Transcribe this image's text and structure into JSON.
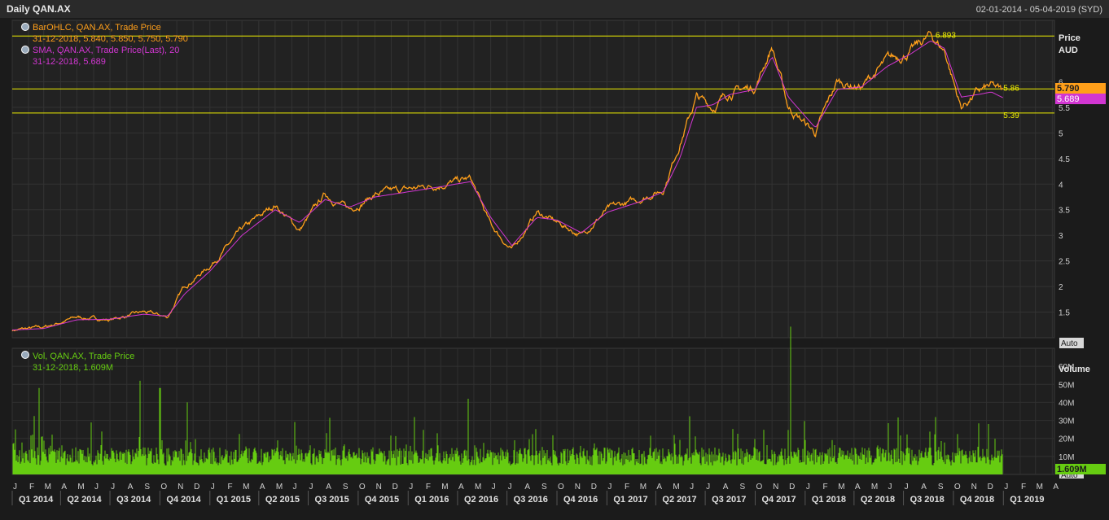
{
  "header": {
    "title": "Daily QAN.AX",
    "date_range": "02-01-2014 - 05-04-2019 (SYD)"
  },
  "colors": {
    "price": "#ff9f1a",
    "sma": "#d236d2",
    "volume": "#66cc11",
    "hline": "#f0f000"
  },
  "legend": {
    "ohlc_line1": "BarOHLC, QAN.AX, Trade Price",
    "ohlc_line2": "31-12-2018, 5.840, 5.850, 5.750, 5.790",
    "sma_line1": "SMA, QAN.AX, Trade Price(Last),  20",
    "sma_line2": "31-12-2018, 5.689",
    "vol_line1": "Vol, QAN.AX, Trade Price",
    "vol_line2": "31-12-2018, 1.609M"
  },
  "price_axis": {
    "title": "Price",
    "unit": "AUD",
    "ticks": [
      "1.5",
      "2",
      "2.5",
      "3",
      "3.5",
      "4",
      "4.5",
      "5",
      "5.5",
      "6"
    ],
    "last_price_badge": "5.790",
    "sma_badge": "5.689",
    "auto_label": "Auto"
  },
  "volume_axis": {
    "title": "Volume",
    "ticks": [
      "10M",
      "20M",
      "30M",
      "40M",
      "50M",
      "60M"
    ],
    "last_volume_badge": "1.609M",
    "auto_label": "Auto"
  },
  "hlines": [
    {
      "value": 6.893,
      "label": "6.893"
    },
    {
      "value": 5.86,
      "label": "5.86"
    },
    {
      "value": 5.39,
      "label": "5.39"
    }
  ],
  "x_axis": {
    "months": [
      "J",
      "F",
      "M",
      "A",
      "M",
      "J",
      "J",
      "A",
      "S",
      "O",
      "N",
      "D",
      "J",
      "F",
      "M",
      "A",
      "M",
      "J",
      "J",
      "A",
      "S",
      "O",
      "N",
      "D",
      "J",
      "F",
      "M",
      "A",
      "M",
      "J",
      "J",
      "A",
      "S",
      "O",
      "N",
      "D",
      "J",
      "F",
      "M",
      "A",
      "M",
      "J",
      "J",
      "A",
      "S",
      "O",
      "N",
      "D",
      "J",
      "F",
      "M",
      "A",
      "M",
      "J",
      "J",
      "A",
      "S",
      "O",
      "N",
      "D",
      "J",
      "F",
      "M",
      "A"
    ],
    "quarters": [
      "Q1 2014",
      "Q2 2014",
      "Q3 2014",
      "Q4 2014",
      "Q1 2015",
      "Q2 2015",
      "Q3 2015",
      "Q4 2015",
      "Q1 2016",
      "Q2 2016",
      "Q3 2016",
      "Q4 2016",
      "Q1 2017",
      "Q2 2017",
      "Q3 2017",
      "Q4 2017",
      "Q1 2018",
      "Q2 2018",
      "Q3 2018",
      "Q4 2018",
      "Q1 2019"
    ]
  },
  "chart_data": {
    "type": "line",
    "x_range": [
      "2014-01-02",
      "2019-04-05"
    ],
    "price_ylim": [
      1.0,
      7.2
    ],
    "volume_ylim": [
      0,
      70
    ],
    "price_grid": true,
    "legend_placement": "top-left",
    "price_series": {
      "name": "BarOHLC, QAN.AX, Trade Price",
      "x": [
        "2014-01-02",
        "2014-03-01",
        "2014-05-01",
        "2014-07-01",
        "2014-09-01",
        "2014-10-15",
        "2014-11-15",
        "2015-01-01",
        "2015-03-01",
        "2015-05-01",
        "2015-06-15",
        "2015-08-01",
        "2015-09-15",
        "2015-11-01",
        "2016-01-01",
        "2016-03-01",
        "2016-04-25",
        "2016-06-01",
        "2016-07-10",
        "2016-08-25",
        "2016-10-01",
        "2016-11-15",
        "2017-01-01",
        "2017-03-01",
        "2017-04-15",
        "2017-05-15",
        "2017-06-15",
        "2017-07-15",
        "2017-08-15",
        "2017-10-01",
        "2017-11-01",
        "2017-12-01",
        "2018-01-20",
        "2018-03-01",
        "2018-04-15",
        "2018-06-01",
        "2018-07-15",
        "2018-08-20",
        "2018-09-15",
        "2018-10-15",
        "2018-11-15",
        "2018-12-10",
        "2018-12-31"
      ],
      "values": [
        1.15,
        1.2,
        1.4,
        1.35,
        1.5,
        1.4,
        2.0,
        2.4,
        3.1,
        3.6,
        3.1,
        3.8,
        3.5,
        3.8,
        3.9,
        4.0,
        4.1,
        3.2,
        2.7,
        3.45,
        3.25,
        3.0,
        3.5,
        3.7,
        3.9,
        4.8,
        5.7,
        5.5,
        5.8,
        5.9,
        6.7,
        5.5,
        5.0,
        6.0,
        5.9,
        6.4,
        6.6,
        6.9,
        6.6,
        5.5,
        5.8,
        5.9,
        5.79
      ]
    },
    "sma_series": {
      "name": "SMA, QAN.AX, Trade Price(Last),  20",
      "x": [
        "2014-01-02",
        "2014-03-01",
        "2014-05-01",
        "2014-07-01",
        "2014-09-01",
        "2014-10-15",
        "2014-11-15",
        "2015-01-01",
        "2015-03-01",
        "2015-05-01",
        "2015-06-15",
        "2015-08-01",
        "2015-09-15",
        "2015-11-01",
        "2016-01-01",
        "2016-03-01",
        "2016-04-25",
        "2016-06-01",
        "2016-07-10",
        "2016-08-25",
        "2016-10-01",
        "2016-11-15",
        "2017-01-01",
        "2017-03-01",
        "2017-04-15",
        "2017-05-15",
        "2017-06-15",
        "2017-07-15",
        "2017-08-15",
        "2017-10-01",
        "2017-11-01",
        "2017-12-01",
        "2018-01-20",
        "2018-03-01",
        "2018-04-15",
        "2018-06-01",
        "2018-07-15",
        "2018-08-20",
        "2018-09-15",
        "2018-10-15",
        "2018-11-15",
        "2018-12-10",
        "2018-12-31"
      ],
      "values": [
        1.15,
        1.18,
        1.35,
        1.36,
        1.46,
        1.42,
        1.85,
        2.3,
        3.0,
        3.5,
        3.25,
        3.7,
        3.55,
        3.75,
        3.85,
        3.95,
        4.05,
        3.35,
        2.8,
        3.35,
        3.3,
        3.05,
        3.45,
        3.65,
        3.85,
        4.5,
        5.5,
        5.55,
        5.75,
        5.85,
        6.5,
        5.7,
        5.1,
        5.85,
        5.9,
        6.3,
        6.55,
        6.8,
        6.65,
        5.7,
        5.75,
        5.8,
        5.689
      ]
    },
    "volume_series": {
      "name": "Vol, QAN.AX, Trade Price",
      "x": [
        "2014-02-20",
        "2014-08-25",
        "2014-10-01",
        "2014-11-20",
        "2016-04-20",
        "2017-12-05",
        "2018-12-05",
        "2018-12-31"
      ],
      "values": [
        48,
        52,
        48,
        40,
        42,
        82,
        28,
        1.609
      ],
      "typical_range": [
        5,
        15
      ]
    }
  }
}
